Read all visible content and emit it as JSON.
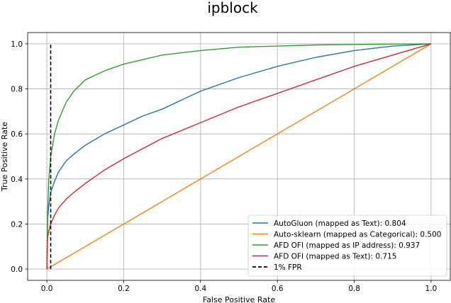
{
  "chart_data": {
    "type": "line",
    "title": "ipblock",
    "xlabel": "False Positive Rate",
    "ylabel": "True Positive Rate",
    "xlim": [
      -0.05,
      1.05
    ],
    "ylim": [
      -0.05,
      1.05
    ],
    "x_ticks": [
      "0.0",
      "0.2",
      "0.4",
      "0.6",
      "0.8",
      "1.0"
    ],
    "y_ticks": [
      "0.0",
      "0.2",
      "0.4",
      "0.6",
      "0.8",
      "1.0"
    ],
    "grid": true,
    "legend_position": "bottom-right",
    "series": [
      {
        "name": "AutoGluon (mapped as Text): 0.804",
        "color": "#1f77b4",
        "style": "solid",
        "x": [
          0,
          0.002,
          0.005,
          0.01,
          0.02,
          0.03,
          0.05,
          0.07,
          0.1,
          0.15,
          0.2,
          0.25,
          0.3,
          0.4,
          0.5,
          0.6,
          0.7,
          0.8,
          0.9,
          1.0
        ],
        "y": [
          0,
          0.22,
          0.28,
          0.34,
          0.39,
          0.43,
          0.48,
          0.51,
          0.55,
          0.6,
          0.64,
          0.68,
          0.71,
          0.79,
          0.85,
          0.9,
          0.94,
          0.97,
          0.99,
          1.0
        ]
      },
      {
        "name": "Auto-sklearn (mapped as Categorical): 0.500",
        "color": "#ff7f0e",
        "style": "solid",
        "x": [
          0,
          1.0
        ],
        "y": [
          0,
          1.0
        ]
      },
      {
        "name": "AFD OFI (mapped as IP address): 0.937",
        "color": "#2ca02c",
        "style": "solid",
        "x": [
          0,
          0.002,
          0.005,
          0.01,
          0.02,
          0.03,
          0.04,
          0.05,
          0.07,
          0.1,
          0.15,
          0.2,
          0.25,
          0.3,
          0.4,
          0.5,
          0.6,
          0.7,
          0.8,
          0.9,
          1.0
        ],
        "y": [
          0,
          0.25,
          0.4,
          0.5,
          0.6,
          0.66,
          0.7,
          0.74,
          0.79,
          0.84,
          0.88,
          0.91,
          0.93,
          0.95,
          0.97,
          0.985,
          0.99,
          0.995,
          0.997,
          0.999,
          1.0
        ]
      },
      {
        "name": "AFD OFI (mapped as Text): 0.715",
        "color": "#d62728",
        "style": "solid",
        "x": [
          0,
          0.002,
          0.005,
          0.01,
          0.02,
          0.03,
          0.05,
          0.07,
          0.1,
          0.15,
          0.2,
          0.3,
          0.4,
          0.5,
          0.6,
          0.7,
          0.8,
          0.9,
          1.0
        ],
        "y": [
          0,
          0.14,
          0.17,
          0.2,
          0.24,
          0.27,
          0.31,
          0.34,
          0.38,
          0.44,
          0.49,
          0.58,
          0.65,
          0.72,
          0.78,
          0.84,
          0.9,
          0.95,
          1.0
        ]
      },
      {
        "name": "1% FPR",
        "color": "#000000",
        "style": "dashed",
        "x": [
          0.01,
          0.01
        ],
        "y": [
          0,
          1.0
        ]
      }
    ]
  }
}
